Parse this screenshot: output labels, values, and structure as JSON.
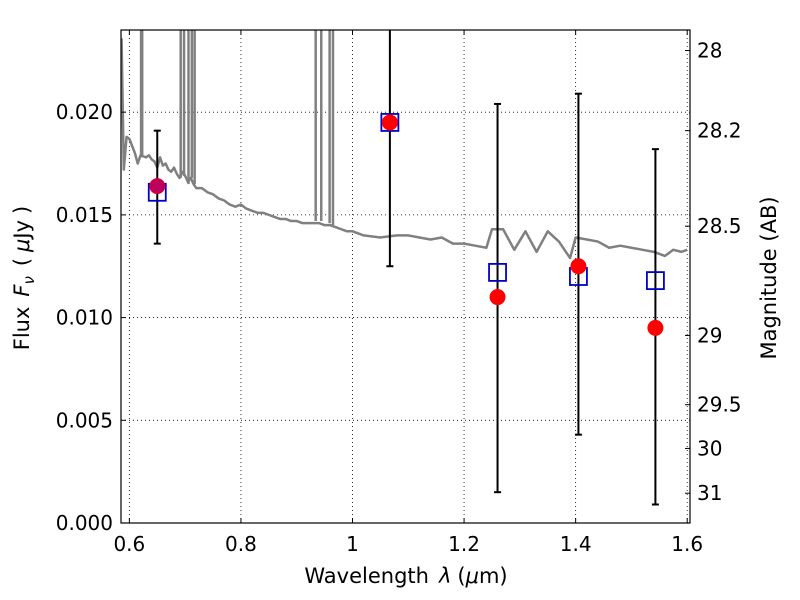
{
  "chart_data": {
    "type": "scatter",
    "xlabel_text": "Wavelength",
    "xlabel_symbol": "λ",
    "xlabel_unit_open": "(",
    "xlabel_unit_mu": "μ",
    "xlabel_unit_rest": "m)",
    "ylabel_text": "Flux",
    "ylabel_symbol": "F",
    "ylabel_sub": "ν",
    "ylabel_unit_open": "(",
    "ylabel_unit_mu": "μ",
    "ylabel_unit_rest": "Jy",
    "ylabel_unit_close": ")",
    "y2label": "Magnitude (AB)",
    "xlim": [
      0.585,
      1.605
    ],
    "ylim": [
      0.0,
      0.024
    ],
    "grid": true,
    "x_ticks": [
      {
        "value": 0.6,
        "label": "0.6"
      },
      {
        "value": 0.8,
        "label": "0.8"
      },
      {
        "value": 1.0,
        "label": "1"
      },
      {
        "value": 1.2,
        "label": "1.2"
      },
      {
        "value": 1.4,
        "label": "1.4"
      },
      {
        "value": 1.6,
        "label": "1.6"
      }
    ],
    "y_ticks": [
      {
        "value": 0.0,
        "label": "0.000"
      },
      {
        "value": 0.005,
        "label": "0.005"
      },
      {
        "value": 0.01,
        "label": "0.010"
      },
      {
        "value": 0.015,
        "label": "0.015"
      },
      {
        "value": 0.02,
        "label": "0.020"
      }
    ],
    "y2_ticks": [
      {
        "label": "28",
        "flux": 0.023
      },
      {
        "label": "28.2",
        "flux": 0.0191
      },
      {
        "label": "28.5",
        "flux": 0.01445
      },
      {
        "label": "29",
        "flux": 0.00913
      },
      {
        "label": "29.5",
        "flux": 0.00576
      },
      {
        "label": "30",
        "flux": 0.00363
      },
      {
        "label": "31",
        "flux": 0.00145
      }
    ],
    "series": [
      {
        "marker": "open-square",
        "color": "#0000cc",
        "x": [
          0.65,
          1.067,
          1.26,
          1.405,
          1.543
        ],
        "y": [
          0.0161,
          0.0195,
          0.0122,
          0.012,
          0.0118
        ]
      },
      {
        "marker": "filled-circle",
        "color": "#ff0000",
        "x": [
          0.65,
          1.067,
          1.26,
          1.405,
          1.543
        ],
        "y": [
          0.0164,
          0.0195,
          0.011,
          0.0125,
          0.0095
        ],
        "error_low": [
          0.0136,
          0.0125,
          0.0015,
          0.0043,
          0.0009
        ],
        "error_high": [
          0.0191,
          0.024,
          0.0204,
          0.0209,
          0.0182
        ]
      }
    ],
    "model_spectrum": {
      "color": "#808080",
      "x": [
        0.586,
        0.59,
        0.595,
        0.6,
        0.61,
        0.615,
        0.62,
        0.63,
        0.635,
        0.64,
        0.645,
        0.65,
        0.655,
        0.66,
        0.665,
        0.67,
        0.675,
        0.68,
        0.685,
        0.69,
        0.695,
        0.7,
        0.705,
        0.71,
        0.715,
        0.72,
        0.73,
        0.74,
        0.75,
        0.76,
        0.77,
        0.78,
        0.79,
        0.8,
        0.81,
        0.82,
        0.83,
        0.84,
        0.85,
        0.86,
        0.87,
        0.88,
        0.89,
        0.9,
        0.91,
        0.92,
        0.93,
        0.94,
        0.95,
        0.96,
        0.97,
        0.98,
        0.99,
        1.0,
        1.02,
        1.05,
        1.08,
        1.1,
        1.12,
        1.14,
        1.16,
        1.18,
        1.2,
        1.22,
        1.24,
        1.25,
        1.27,
        1.29,
        1.31,
        1.33,
        1.35,
        1.37,
        1.39,
        1.4,
        1.42,
        1.44,
        1.46,
        1.48,
        1.5,
        1.52,
        1.54,
        1.56,
        1.575,
        1.59,
        1.6
      ],
      "y": [
        0.0236,
        0.0172,
        0.0188,
        0.0187,
        0.018,
        0.0175,
        0.0179,
        0.0178,
        0.0179,
        0.0177,
        0.0176,
        0.0173,
        0.0178,
        0.0174,
        0.0175,
        0.0172,
        0.0171,
        0.0173,
        0.017,
        0.0168,
        0.0171,
        0.0169,
        0.0166,
        0.0168,
        0.0165,
        0.0163,
        0.0163,
        0.0161,
        0.016,
        0.0158,
        0.0157,
        0.0155,
        0.0154,
        0.0155,
        0.0153,
        0.0152,
        0.0151,
        0.0151,
        0.015,
        0.0149,
        0.0148,
        0.0148,
        0.0147,
        0.0147,
        0.0146,
        0.0146,
        0.0146,
        0.0146,
        0.0145,
        0.0145,
        0.0144,
        0.0143,
        0.0142,
        0.0142,
        0.014,
        0.0139,
        0.014,
        0.014,
        0.0139,
        0.0138,
        0.0139,
        0.0136,
        0.0136,
        0.0135,
        0.0134,
        0.0143,
        0.0143,
        0.0133,
        0.0142,
        0.0132,
        0.0142,
        0.0137,
        0.0129,
        0.0139,
        0.0138,
        0.0137,
        0.0134,
        0.0135,
        0.0134,
        0.0133,
        0.0132,
        0.013,
        0.0133,
        0.0132,
        0.0133
      ]
    },
    "emission_lines": {
      "color": "#808080",
      "x": [
        0.621,
        0.623,
        0.692,
        0.698,
        0.706,
        0.712,
        0.717,
        0.934,
        0.944,
        0.959,
        0.965
      ],
      "base": [
        0.0178,
        0.0178,
        0.0168,
        0.0169,
        0.0165,
        0.0168,
        0.0165,
        0.0147,
        0.0147,
        0.0146,
        0.0145
      ]
    }
  }
}
